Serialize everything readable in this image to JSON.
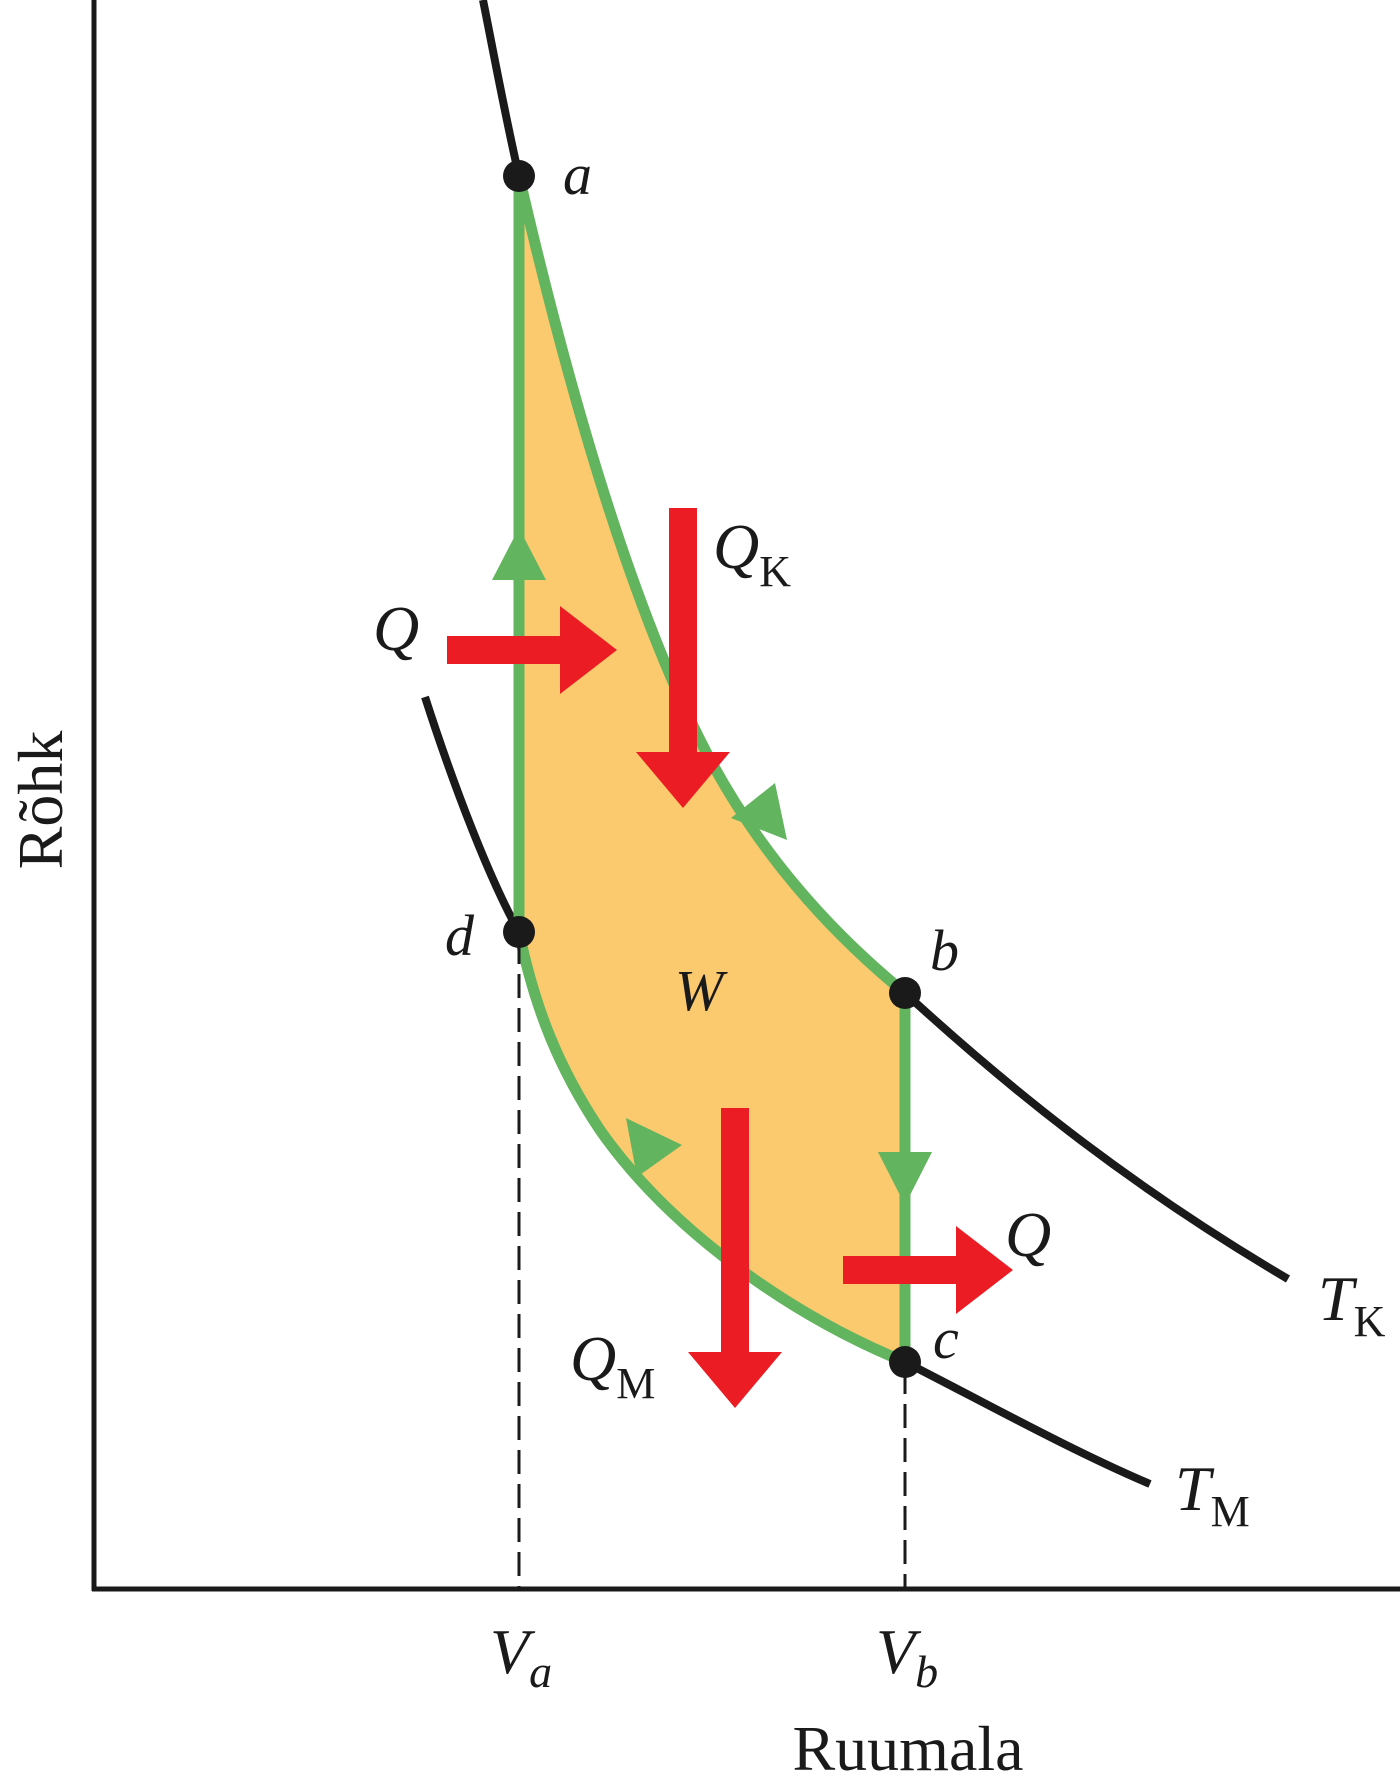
{
  "axes": {
    "y_label": "Rõhk",
    "x_label": "Ruumala",
    "x_ticks": [
      {
        "main": "V",
        "sub": "a"
      },
      {
        "main": "V",
        "sub": "b"
      }
    ]
  },
  "points": {
    "a": "a",
    "b": "b",
    "c": "c",
    "d": "d"
  },
  "isotherms": {
    "hot": {
      "main": "T",
      "sub": "K"
    },
    "cold": {
      "main": "T",
      "sub": "M"
    }
  },
  "heat_flows": {
    "q_left": "Q",
    "q_right": "Q",
    "q_hot": {
      "main": "Q",
      "sub": "K"
    },
    "q_cold": {
      "main": "Q",
      "sub": "M"
    }
  },
  "work_label": "W",
  "colors": {
    "cycle_path": "#62b45e",
    "work_fill": "#fbca6f",
    "heat_arrow": "#ec1c24",
    "curve": "#1a1a1a"
  }
}
